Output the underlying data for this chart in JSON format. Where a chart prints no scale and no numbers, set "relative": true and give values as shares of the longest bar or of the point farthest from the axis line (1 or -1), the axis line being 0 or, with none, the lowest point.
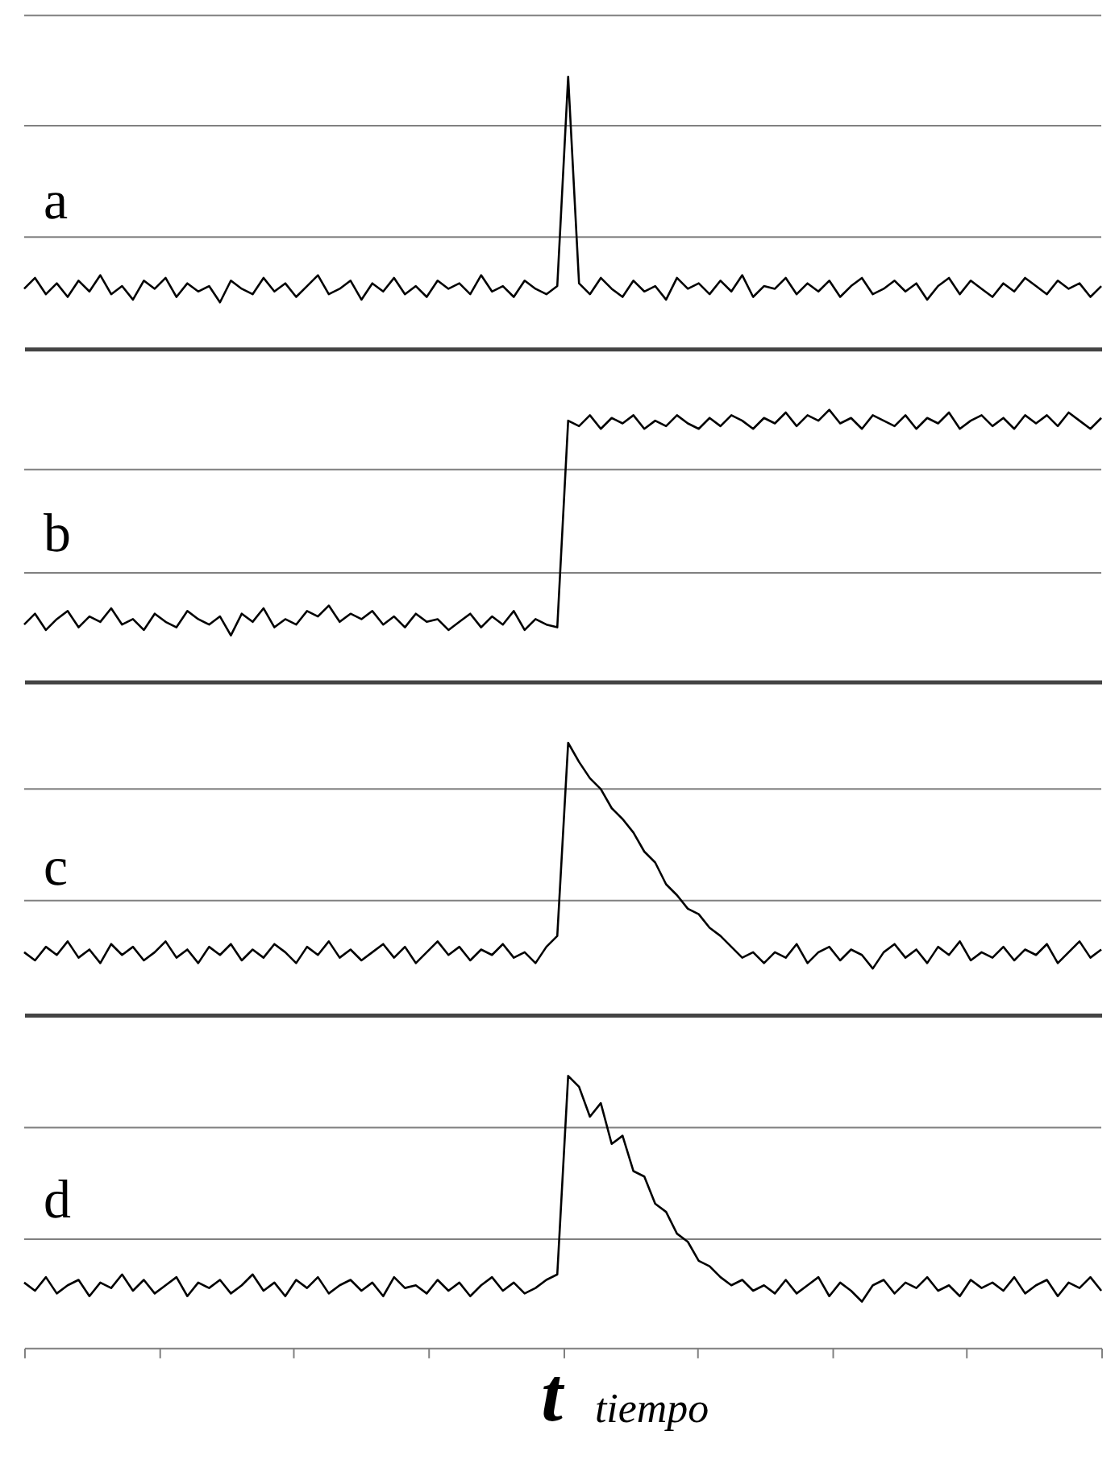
{
  "chart_data": [
    {
      "type": "line",
      "relative": true,
      "tick_labels": false,
      "annotations": [
        "a"
      ],
      "ref_lines": [
        {
          "axis": "y",
          "value": 0.41,
          "color": "#808080"
        },
        {
          "axis": "y",
          "value": 0.82,
          "color": "#808080"
        }
      ],
      "categories": [
        null,
        null,
        null,
        null,
        null,
        null,
        null,
        null,
        null,
        null,
        null,
        null,
        null,
        null,
        null,
        null,
        null,
        null,
        null,
        null,
        null,
        null,
        null,
        null,
        null,
        null,
        null,
        null,
        null,
        null,
        null,
        null,
        null,
        null,
        null,
        null,
        null,
        null,
        null,
        null,
        null,
        null,
        null,
        null,
        null,
        null,
        null,
        null,
        null,
        null,
        null,
        null,
        null,
        null,
        null,
        null,
        null,
        null,
        null,
        null,
        null,
        null,
        null,
        null,
        null,
        null,
        null,
        null,
        null,
        null,
        null,
        null,
        null,
        null,
        null,
        null,
        null,
        null,
        null,
        null,
        null,
        null,
        null,
        null,
        null,
        null,
        null,
        null,
        null,
        null,
        null,
        null,
        null,
        null,
        null,
        null,
        null,
        null,
        null,
        null
      ],
      "series": [
        {
          "color": "#000000",
          "values": [
            0.22,
            0.26,
            0.2,
            0.24,
            0.19,
            0.25,
            0.21,
            0.27,
            0.2,
            0.23,
            0.18,
            0.25,
            0.22,
            0.26,
            0.19,
            0.24,
            0.21,
            0.23,
            0.17,
            0.25,
            0.22,
            0.2,
            0.26,
            0.21,
            0.24,
            0.19,
            0.23,
            0.27,
            0.2,
            0.22,
            0.25,
            0.18,
            0.24,
            0.21,
            0.26,
            0.2,
            0.23,
            0.19,
            0.25,
            0.22,
            0.24,
            0.2,
            0.27,
            0.21,
            0.23,
            0.19,
            0.25,
            0.22,
            0.2,
            0.23,
            1.0,
            0.24,
            0.2,
            0.26,
            0.22,
            0.19,
            0.25,
            0.21,
            0.23,
            0.18,
            0.26,
            0.22,
            0.24,
            0.2,
            0.25,
            0.21,
            0.27,
            0.19,
            0.23,
            0.22,
            0.26,
            0.2,
            0.24,
            0.21,
            0.25,
            0.19,
            0.23,
            0.26,
            0.2,
            0.22,
            0.25,
            0.21,
            0.24,
            0.18,
            0.23,
            0.26,
            0.2,
            0.25,
            0.22,
            0.19,
            0.24,
            0.21,
            0.26,
            0.23,
            0.2,
            0.25,
            0.22,
            0.24,
            0.19,
            0.23
          ]
        }
      ]
    },
    {
      "type": "line",
      "relative": true,
      "tick_labels": false,
      "annotations": [
        "b"
      ],
      "ref_lines": [
        {
          "axis": "y",
          "value": 0.4,
          "color": "#808080"
        },
        {
          "axis": "y",
          "value": 0.78,
          "color": "#808080"
        }
      ],
      "categories": [
        null,
        null,
        null,
        null,
        null,
        null,
        null,
        null,
        null,
        null,
        null,
        null,
        null,
        null,
        null,
        null,
        null,
        null,
        null,
        null,
        null,
        null,
        null,
        null,
        null,
        null,
        null,
        null,
        null,
        null,
        null,
        null,
        null,
        null,
        null,
        null,
        null,
        null,
        null,
        null,
        null,
        null,
        null,
        null,
        null,
        null,
        null,
        null,
        null,
        null,
        null,
        null,
        null,
        null,
        null,
        null,
        null,
        null,
        null,
        null,
        null,
        null,
        null,
        null,
        null,
        null,
        null,
        null,
        null,
        null,
        null,
        null,
        null,
        null,
        null,
        null,
        null,
        null,
        null,
        null,
        null,
        null,
        null,
        null,
        null,
        null,
        null,
        null,
        null,
        null,
        null,
        null,
        null,
        null,
        null,
        null,
        null,
        null,
        null,
        null
      ],
      "series": [
        {
          "color": "#000000",
          "values": [
            0.21,
            0.25,
            0.19,
            0.23,
            0.26,
            0.2,
            0.24,
            0.22,
            0.27,
            0.21,
            0.23,
            0.19,
            0.25,
            0.22,
            0.2,
            0.26,
            0.23,
            0.21,
            0.24,
            0.17,
            0.25,
            0.22,
            0.27,
            0.2,
            0.23,
            0.21,
            0.26,
            0.24,
            0.28,
            0.22,
            0.25,
            0.23,
            0.26,
            0.21,
            0.24,
            0.2,
            0.25,
            0.22,
            0.23,
            0.19,
            0.22,
            0.25,
            0.2,
            0.24,
            0.21,
            0.26,
            0.19,
            0.23,
            0.21,
            0.2,
            0.96,
            0.94,
            0.98,
            0.93,
            0.97,
            0.95,
            0.98,
            0.93,
            0.96,
            0.94,
            0.98,
            0.95,
            0.93,
            0.97,
            0.94,
            0.98,
            0.96,
            0.93,
            0.97,
            0.95,
            0.99,
            0.94,
            0.98,
            0.96,
            1.0,
            0.95,
            0.97,
            0.93,
            0.98,
            0.96,
            0.94,
            0.98,
            0.93,
            0.97,
            0.95,
            0.99,
            0.93,
            0.96,
            0.98,
            0.94,
            0.97,
            0.93,
            0.98,
            0.95,
            0.98,
            0.94,
            0.99,
            0.96,
            0.93,
            0.97
          ]
        }
      ]
    },
    {
      "type": "line",
      "relative": true,
      "tick_labels": false,
      "annotations": [
        "c"
      ],
      "ref_lines": [
        {
          "axis": "y",
          "value": 0.42,
          "color": "#808080"
        },
        {
          "axis": "y",
          "value": 0.83,
          "color": "#808080"
        }
      ],
      "categories": [
        null,
        null,
        null,
        null,
        null,
        null,
        null,
        null,
        null,
        null,
        null,
        null,
        null,
        null,
        null,
        null,
        null,
        null,
        null,
        null,
        null,
        null,
        null,
        null,
        null,
        null,
        null,
        null,
        null,
        null,
        null,
        null,
        null,
        null,
        null,
        null,
        null,
        null,
        null,
        null,
        null,
        null,
        null,
        null,
        null,
        null,
        null,
        null,
        null,
        null,
        null,
        null,
        null,
        null,
        null,
        null,
        null,
        null,
        null,
        null,
        null,
        null,
        null,
        null,
        null,
        null,
        null,
        null,
        null,
        null,
        null,
        null,
        null,
        null,
        null,
        null,
        null,
        null,
        null,
        null,
        null,
        null,
        null,
        null,
        null,
        null,
        null,
        null,
        null,
        null,
        null,
        null,
        null,
        null,
        null,
        null,
        null,
        null,
        null,
        null
      ],
      "series": [
        {
          "color": "#000000",
          "values": [
            0.23,
            0.2,
            0.25,
            0.22,
            0.27,
            0.21,
            0.24,
            0.19,
            0.26,
            0.22,
            0.25,
            0.2,
            0.23,
            0.27,
            0.21,
            0.24,
            0.19,
            0.25,
            0.22,
            0.26,
            0.2,
            0.24,
            0.21,
            0.26,
            0.23,
            0.19,
            0.25,
            0.22,
            0.27,
            0.21,
            0.24,
            0.2,
            0.23,
            0.26,
            0.21,
            0.25,
            0.19,
            0.23,
            0.27,
            0.22,
            0.25,
            0.2,
            0.24,
            0.22,
            0.26,
            0.21,
            0.23,
            0.19,
            0.25,
            0.29,
            1.0,
            0.93,
            0.87,
            0.83,
            0.76,
            0.72,
            0.67,
            0.6,
            0.56,
            0.48,
            0.44,
            0.39,
            0.37,
            0.32,
            0.29,
            0.25,
            0.21,
            0.23,
            0.19,
            0.23,
            0.21,
            0.26,
            0.19,
            0.23,
            0.25,
            0.2,
            0.24,
            0.22,
            0.17,
            0.23,
            0.26,
            0.21,
            0.24,
            0.19,
            0.25,
            0.22,
            0.27,
            0.2,
            0.23,
            0.21,
            0.25,
            0.2,
            0.24,
            0.22,
            0.26,
            0.19,
            0.23,
            0.27,
            0.21,
            0.24
          ]
        }
      ]
    },
    {
      "type": "line",
      "relative": true,
      "tick_labels": false,
      "annotations": [
        "d"
      ],
      "xlabel": "t tiempo",
      "ref_lines": [
        {
          "axis": "y",
          "value": 0.4,
          "color": "#808080"
        },
        {
          "axis": "y",
          "value": 0.81,
          "color": "#808080"
        }
      ],
      "categories": [
        null,
        null,
        null,
        null,
        null,
        null,
        null,
        null,
        null,
        null,
        null,
        null,
        null,
        null,
        null,
        null,
        null,
        null,
        null,
        null,
        null,
        null,
        null,
        null,
        null,
        null,
        null,
        null,
        null,
        null,
        null,
        null,
        null,
        null,
        null,
        null,
        null,
        null,
        null,
        null,
        null,
        null,
        null,
        null,
        null,
        null,
        null,
        null,
        null,
        null,
        null,
        null,
        null,
        null,
        null,
        null,
        null,
        null,
        null,
        null,
        null,
        null,
        null,
        null,
        null,
        null,
        null,
        null,
        null,
        null,
        null,
        null,
        null,
        null,
        null,
        null,
        null,
        null,
        null,
        null,
        null,
        null,
        null,
        null,
        null,
        null,
        null,
        null,
        null,
        null,
        null,
        null,
        null,
        null,
        null,
        null,
        null,
        null,
        null,
        null
      ],
      "series": [
        {
          "color": "#000000",
          "values": [
            0.24,
            0.21,
            0.26,
            0.2,
            0.23,
            0.25,
            0.19,
            0.24,
            0.22,
            0.27,
            0.21,
            0.25,
            0.2,
            0.23,
            0.26,
            0.19,
            0.24,
            0.22,
            0.25,
            0.2,
            0.23,
            0.27,
            0.21,
            0.24,
            0.19,
            0.25,
            0.22,
            0.26,
            0.2,
            0.23,
            0.25,
            0.21,
            0.24,
            0.19,
            0.26,
            0.22,
            0.23,
            0.2,
            0.25,
            0.21,
            0.24,
            0.19,
            0.23,
            0.26,
            0.21,
            0.24,
            0.2,
            0.22,
            0.25,
            0.27,
            1.0,
            0.96,
            0.85,
            0.9,
            0.75,
            0.78,
            0.65,
            0.63,
            0.53,
            0.5,
            0.42,
            0.39,
            0.32,
            0.3,
            0.26,
            0.23,
            0.25,
            0.21,
            0.23,
            0.2,
            0.25,
            0.2,
            0.23,
            0.26,
            0.19,
            0.24,
            0.21,
            0.17,
            0.23,
            0.25,
            0.2,
            0.24,
            0.22,
            0.26,
            0.21,
            0.23,
            0.19,
            0.25,
            0.22,
            0.24,
            0.21,
            0.26,
            0.2,
            0.23,
            0.25,
            0.19,
            0.24,
            0.22,
            0.26,
            0.21
          ]
        }
      ]
    }
  ]
}
